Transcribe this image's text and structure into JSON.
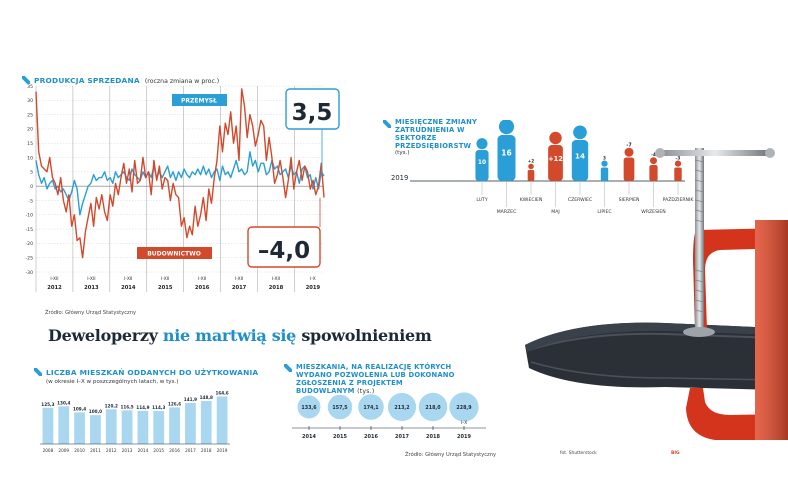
{
  "colors": {
    "blue": "#2a9ed6",
    "red": "#d3492c",
    "dark": "#1d2a36",
    "bar": "#a9d7ef"
  },
  "main_title": {
    "part1": "Deweloperzy",
    "part2": "nie martwią się",
    "part3": "spowolnieniem"
  },
  "photo_credit": "fot. Shutterstock",
  "page_badge": "BIG",
  "chart_data": [
    {
      "type": "line",
      "title": "PRODUKCJA SPRZEDANA",
      "subtitle": "(roczna zmiana w proc.)",
      "ylim": [
        -30,
        35
      ],
      "yticks": [
        "35",
        "30",
        "25",
        "20",
        "15",
        "10",
        "5",
        "0",
        "-5",
        "-10",
        "-15",
        "-20",
        "-25",
        "-30"
      ],
      "period_labels": [
        "I-XII",
        "I-XII",
        "I-XII",
        "I-XII",
        "I-XII",
        "I-XII",
        "I-XII",
        "I-X"
      ],
      "year_labels": [
        "2012",
        "2013",
        "2014",
        "2015",
        "2016",
        "2017",
        "2018",
        "2019"
      ],
      "series": [
        {
          "name": "PRZEMYSŁ",
          "values": [
            9,
            4,
            1,
            3,
            -1,
            1,
            2,
            -1,
            0,
            -2,
            -1,
            -3,
            -5,
            -2,
            2,
            -1,
            -10,
            -6,
            -3,
            0,
            1,
            4,
            2,
            3,
            3,
            5,
            2,
            3,
            1,
            5,
            3,
            4,
            5,
            3,
            2,
            6,
            4,
            3,
            2,
            5,
            3,
            5,
            3,
            7,
            3,
            5,
            3,
            5,
            7,
            3,
            5,
            2,
            5,
            3,
            6,
            4,
            3,
            5,
            4,
            6,
            4,
            7,
            4,
            6,
            3,
            5,
            6,
            2,
            7,
            4,
            5,
            3,
            6,
            9,
            5,
            6,
            4,
            5,
            12,
            7,
            9,
            5,
            8,
            8,
            4,
            5,
            9,
            6,
            7,
            4,
            5,
            6,
            3,
            7,
            4,
            5,
            1,
            6,
            7,
            3,
            4,
            -1,
            3,
            -1,
            5,
            3.5
          ]
        },
        {
          "name": "BUDOWNICTWO",
          "values": [
            33,
            12,
            7,
            6,
            5,
            10,
            3,
            1,
            -3,
            3,
            -5,
            -9,
            -3,
            -14,
            -10,
            -19,
            -18,
            -25,
            -16,
            -11,
            -6,
            -14,
            -4,
            -8,
            -3,
            -9,
            -12,
            -3,
            -7,
            1,
            -3,
            3,
            8,
            1,
            6,
            -2,
            9,
            1,
            2,
            10,
            3,
            5,
            -3,
            9,
            2,
            7,
            -1,
            3,
            2,
            -5,
            1,
            -3,
            -4,
            -14,
            -11,
            -18,
            -14,
            -17,
            -7,
            -14,
            -10,
            -4,
            -12,
            -1,
            -6,
            3,
            9,
            21,
            12,
            22,
            18,
            26,
            15,
            21,
            9,
            34,
            28,
            17,
            25,
            21,
            14,
            18,
            23,
            21,
            9,
            17,
            10,
            1,
            4,
            9,
            3,
            -4,
            2,
            10,
            -1,
            5,
            9,
            2,
            7,
            5,
            -1,
            2,
            -3,
            0,
            8,
            -4
          ]
        }
      ],
      "end_labels": {
        "przemysl": "3,5",
        "budownictwo": "–4,0"
      },
      "source": "Źródło: Główny Urząd Statystyczny"
    },
    {
      "type": "bar",
      "title": "MIESIĘCZNE ZMIANY ZATRUDNIENIA W SEKTORZE PRZEDSIĘBIORSTW",
      "unit": "(tys.)",
      "year": "2019",
      "categories": [
        "LUTY",
        "MARZEC",
        "KWIECIEŃ",
        "MAJ",
        "CZERWIEC",
        "LIPIEC",
        "SIERPIEŃ",
        "WRZESIEŃ",
        "PAŹDZIERNIK"
      ],
      "values": [
        10,
        16,
        2,
        12,
        14,
        3,
        -7,
        -4,
        -3
      ],
      "value_labels": [
        "10",
        "16",
        "+2",
        "+12",
        "14",
        "3",
        "-7",
        "-4",
        "-3"
      ]
    },
    {
      "type": "bar",
      "title": "LICZBA MIESZKAŃ ODDANYCH DO UŻYTKOWANIA",
      "subtitle": "(w okresie I–X w poszczególnych latach, w tys.)",
      "categories": [
        "2008",
        "2009",
        "2010",
        "2011",
        "2012",
        "2013",
        "2014",
        "2015",
        "2016",
        "2017",
        "2018",
        "2019"
      ],
      "values": [
        125.3,
        130.4,
        109.4,
        100.0,
        120.2,
        116.5,
        114.9,
        114.3,
        126.6,
        141.9,
        148.8,
        164.6
      ],
      "value_labels": [
        "125,3",
        "130,4",
        "109,4",
        "100,0",
        "120,2",
        "116,5",
        "114,9",
        "114,3",
        "126,6",
        "141,9",
        "148,8",
        "164,6"
      ]
    },
    {
      "type": "bar",
      "title": "MIESZKANIA, NA REALIZACJĘ KTÓRYCH WYDANO POZWOLENIA LUB DOKONANO ZGŁOSZENIA Z PROJEKTEM BUDOWLANYM",
      "unit": "(tys.)",
      "categories": [
        "2014",
        "2015",
        "2016",
        "2017",
        "2018",
        "2019"
      ],
      "category_note": "I–X",
      "values": [
        133.6,
        157.5,
        174.1,
        213.2,
        218.0,
        228.9
      ],
      "value_labels": [
        "133,6",
        "157,5",
        "174,1",
        "213,2",
        "218,0",
        "228,9"
      ],
      "source": "Źródło: Główny Urząd Statystyczny"
    }
  ]
}
